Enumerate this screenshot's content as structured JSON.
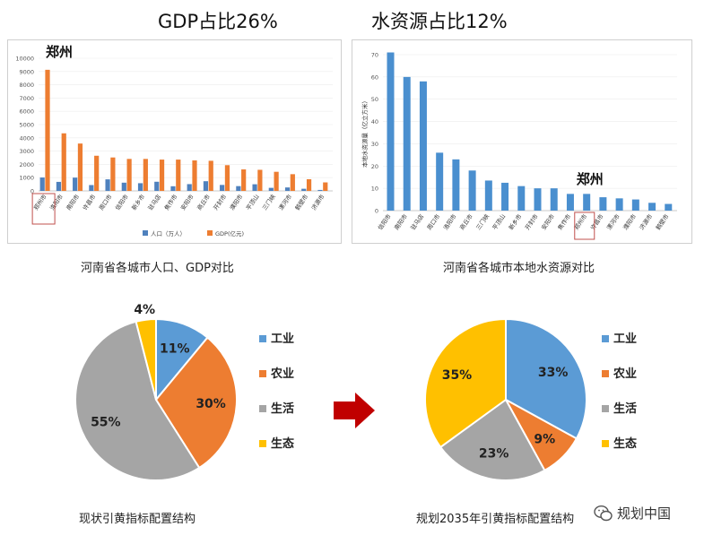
{
  "headings": {
    "gdp_share": "GDP占比26%",
    "water_share": "水资源占比12%"
  },
  "captions": {
    "pop_gdp": "河南省各城市人口、GDP对比",
    "water": "河南省各城市本地水资源对比",
    "current_pie": "现状引黄指标配置结构",
    "plan_pie": "规划2035年引黄指标配置结构"
  },
  "watermark": "规划中国",
  "colors": {
    "population": "#4f81bd",
    "gdp": "#ed7d31",
    "water_bar": "#4a8fcf",
    "highlight_box": "#c0504d",
    "arrow": "#c00000",
    "industry": "#5b9bd5",
    "agriculture": "#ed7d31",
    "life": "#a5a5a5",
    "ecology": "#ffc000"
  },
  "chart_data": [
    {
      "type": "bar",
      "caption_ref": "pop_gdp",
      "annotation": "郑州",
      "categories": [
        "郑州市",
        "洛阳市",
        "南阳市",
        "许昌市",
        "周口市",
        "信阳市",
        "新乡市",
        "驻马店",
        "焦作市",
        "安阳市",
        "商丘市",
        "开封市",
        "濮阳市",
        "平顶山",
        "三门峡",
        "漯河市",
        "鹤壁市",
        "济源市"
      ],
      "series": [
        {
          "name": "人口（万人）",
          "values": [
            1010,
            680,
            1000,
            440,
            870,
            620,
            580,
            690,
            350,
            510,
            730,
            450,
            360,
            500,
            230,
            260,
            160,
            73
          ]
        },
        {
          "name": "GDP(亿元)",
          "values": [
            9130,
            4340,
            3570,
            2650,
            2520,
            2410,
            2410,
            2360,
            2360,
            2300,
            2270,
            1940,
            1620,
            1590,
            1440,
            1260,
            880,
            640
          ]
        }
      ],
      "ylim": [
        0,
        10000
      ],
      "yticks": [
        0,
        1000,
        2000,
        3000,
        4000,
        5000,
        6000,
        7000,
        8000,
        9000,
        10000
      ],
      "legend_position": "bottom",
      "highlight_category": "郑州市"
    },
    {
      "type": "bar",
      "caption_ref": "water",
      "annotation": "郑州",
      "ylabel": "本地水资源量（亿立方米）",
      "categories": [
        "信阳市",
        "南阳市",
        "驻马店",
        "周口市",
        "洛阳市",
        "商丘市",
        "三门峡",
        "平顶山",
        "新乡市",
        "开封市",
        "安阳市",
        "焦作市",
        "郑州市",
        "许昌市",
        "漯河市",
        "濮阳市",
        "济源市",
        "鹤壁市"
      ],
      "values": [
        71,
        60,
        58,
        26,
        23,
        18,
        13.5,
        12.5,
        11,
        10,
        10,
        7.5,
        7.5,
        6,
        5.5,
        5,
        3.5,
        3
      ],
      "ylim": [
        0,
        70
      ],
      "yticks": [
        0,
        10,
        20,
        30,
        40,
        50,
        60,
        70
      ],
      "highlight_category": "郑州市"
    },
    {
      "type": "pie",
      "caption_ref": "current_pie",
      "categories": [
        "工业",
        "农业",
        "生活",
        "生态"
      ],
      "values": [
        11,
        30,
        55,
        4
      ],
      "labels": [
        "11%",
        "30%",
        "55%",
        "4%"
      ],
      "legend_position": "right"
    },
    {
      "type": "pie",
      "caption_ref": "plan_pie",
      "categories": [
        "工业",
        "农业",
        "生活",
        "生态"
      ],
      "values": [
        33,
        9,
        23,
        35
      ],
      "labels": [
        "33%",
        "9%",
        "23%",
        "35%"
      ],
      "legend_position": "right"
    }
  ]
}
